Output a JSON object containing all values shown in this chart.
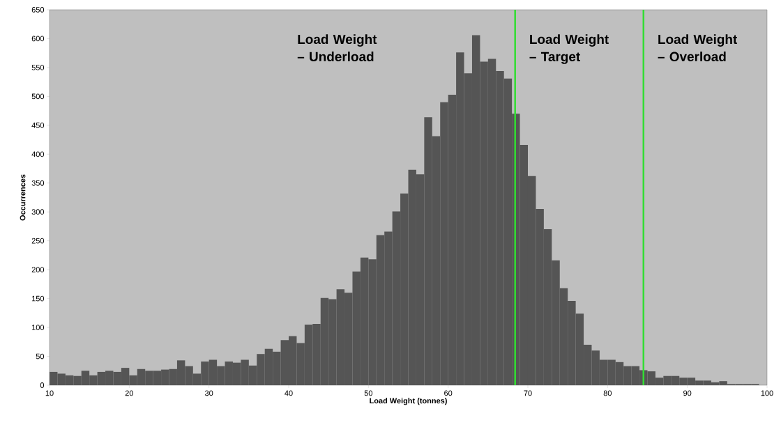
{
  "chart_data": {
    "type": "histogram",
    "xlabel": "Load Weight (tonnes)",
    "ylabel": "Occurrences",
    "bins": [
      10,
      11,
      12,
      13,
      14,
      15,
      16,
      17,
      18,
      19,
      20,
      21,
      22,
      23,
      24,
      25,
      26,
      27,
      28,
      29,
      30,
      31,
      32,
      33,
      34,
      35,
      36,
      37,
      38,
      39,
      40,
      41,
      42,
      43,
      44,
      45,
      46,
      47,
      48,
      49,
      50,
      51,
      52,
      53,
      54,
      55,
      56,
      57,
      58,
      59,
      60,
      61,
      62,
      63,
      64,
      65,
      66,
      67,
      68,
      69,
      70,
      71,
      72,
      73,
      74,
      75,
      76,
      77,
      78,
      79,
      80,
      81,
      82,
      83,
      84,
      85,
      86,
      87,
      88,
      89,
      90,
      91,
      92,
      93,
      94,
      95,
      96,
      97,
      98,
      99
    ],
    "values": [
      23,
      20,
      17,
      16,
      25,
      17,
      23,
      25,
      23,
      30,
      17,
      28,
      25,
      25,
      27,
      28,
      43,
      33,
      20,
      41,
      44,
      33,
      41,
      39,
      44,
      34,
      54,
      63,
      58,
      78,
      85,
      73,
      105,
      106,
      151,
      149,
      166,
      160,
      197,
      221,
      218,
      260,
      266,
      301,
      332,
      373,
      365,
      464,
      431,
      490,
      503,
      576,
      540,
      606,
      560,
      565,
      544,
      531,
      470,
      416,
      362,
      305,
      270,
      216,
      168,
      146,
      124,
      70,
      60,
      44,
      44,
      40,
      33,
      33,
      26,
      24,
      13,
      16,
      16,
      13,
      13,
      8,
      8,
      5,
      7,
      2,
      2,
      2,
      2
    ],
    "color": "#555555",
    "xlim": [
      10,
      100
    ],
    "ylim": [
      0,
      650
    ],
    "xticks": [
      10,
      20,
      30,
      40,
      50,
      60,
      70,
      80,
      90,
      100
    ],
    "yticks": [
      0,
      50,
      100,
      150,
      200,
      250,
      300,
      350,
      400,
      450,
      500,
      550,
      600,
      650
    ],
    "grid": false,
    "ref_lines": [
      {
        "axis": "x",
        "value": 68.4,
        "color": "#33dd33"
      },
      {
        "axis": "x",
        "value": 84.5,
        "color": "#33dd33"
      }
    ],
    "annotations": [
      "Load Weight – Underload",
      "Load Weight – Target",
      "Load Weight – Overload"
    ]
  }
}
